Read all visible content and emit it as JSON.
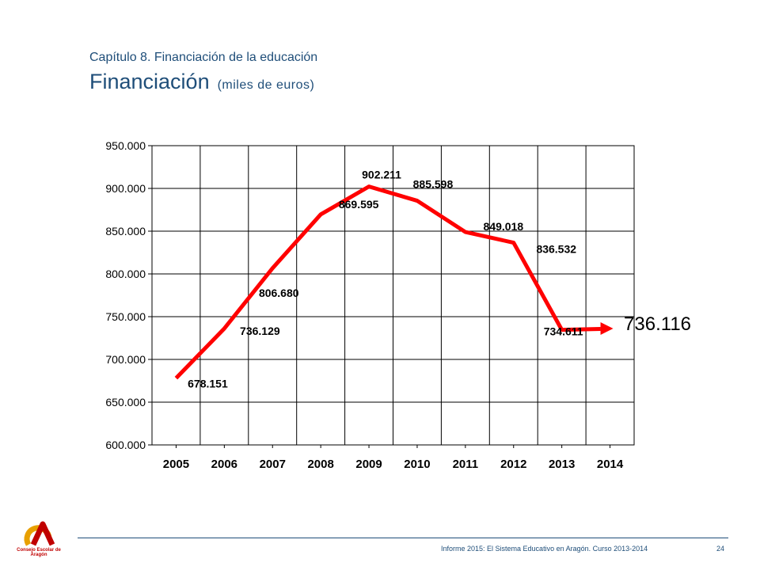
{
  "header": {
    "chapter": "Capítulo 8. Financiación de la educación",
    "title": "Financiación",
    "unit": "(miles de euros)"
  },
  "chart_data": {
    "type": "line",
    "categories": [
      "2005",
      "2006",
      "2007",
      "2008",
      "2009",
      "2010",
      "2011",
      "2012",
      "2013",
      "2014"
    ],
    "series": [
      {
        "values": [
          678151,
          736129,
          806680,
          869595,
          902211,
          885598,
          849018,
          836532,
          734611,
          736116
        ]
      }
    ],
    "data_labels": [
      "678.151",
      "736.129",
      "806.680",
      "869.595",
      "902.211",
      "885.598",
      "849.018",
      "836.532",
      "734.611",
      "736.116"
    ],
    "y_tick_labels": [
      "600.000",
      "650.000",
      "700.000",
      "750.000",
      "800.000",
      "850.000",
      "900.000",
      "950.000"
    ],
    "y_ticks": [
      600000,
      650000,
      700000,
      750000,
      800000,
      850000,
      900000,
      950000
    ],
    "ylim": [
      600000,
      950000
    ],
    "grid": true,
    "line_color": "#ff0000",
    "last_point_arrow": true
  },
  "footer": {
    "text": "Informe 2015: El Sistema Educativo en Aragón. Curso 2013-2014",
    "page": "24",
    "logo_text": "Consejo Escolar de Aragón"
  }
}
